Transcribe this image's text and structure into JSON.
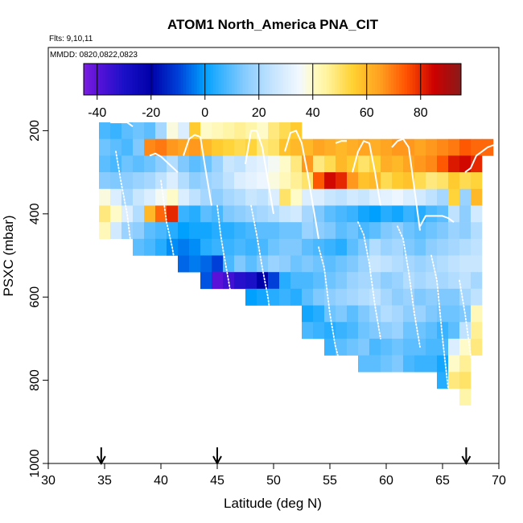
{
  "chart_data": {
    "type": "heatmap",
    "title": "ATOM1 North_America PNA_CIT",
    "annotations": [
      "Flts: 9,10,11",
      "MMDD: 0820,0822,0823"
    ],
    "xlabel": "Latitude (deg N)",
    "ylabel": "PSXC (mbar)",
    "xlim": [
      30,
      70
    ],
    "ylim": [
      1000,
      0
    ],
    "xticks": [
      "30",
      "35",
      "40",
      "45",
      "50",
      "55",
      "60",
      "65",
      "70"
    ],
    "yticks": [
      "200",
      "400",
      "600",
      "800",
      "1000"
    ],
    "colorbar": {
      "range": [
        -45,
        95
      ],
      "ticks": [
        "-40",
        "-20",
        "0",
        "20",
        "40",
        "60",
        "80"
      ]
    },
    "cell_size": {
      "lat": 1,
      "pres": 40
    },
    "columns": [
      {
        "lat": 35,
        "p_top": 180,
        "values": [
          8,
          12,
          10,
          15,
          38,
          48,
          42
        ]
      },
      {
        "lat": 36,
        "p_top": 180,
        "values": [
          6,
          10,
          8,
          14,
          30,
          40,
          28
        ]
      },
      {
        "lat": 37,
        "p_top": 180,
        "values": [
          10,
          8,
          12,
          16,
          20,
          30,
          18
        ]
      },
      {
        "lat": 38,
        "p_top": 180,
        "values": [
          12,
          14,
          10,
          18,
          26,
          22,
          16,
          10
        ]
      },
      {
        "lat": 39,
        "p_top": 180,
        "values": [
          10,
          68,
          12,
          20,
          30,
          60,
          10,
          8
        ]
      },
      {
        "lat": 40,
        "p_top": 180,
        "values": [
          20,
          70,
          16,
          24,
          36,
          72,
          8,
          4
        ]
      },
      {
        "lat": 41,
        "p_top": 180,
        "values": [
          38,
          66,
          22,
          30,
          40,
          80,
          4,
          -2
        ]
      },
      {
        "lat": 42,
        "p_top": 180,
        "values": [
          30,
          64,
          14,
          22,
          30,
          6,
          0,
          -4,
          -6
        ]
      },
      {
        "lat": 43,
        "p_top": 180,
        "values": [
          56,
          66,
          10,
          16,
          24,
          4,
          2,
          -2,
          -4
        ]
      },
      {
        "lat": 44,
        "p_top": 180,
        "values": [
          40,
          60,
          12,
          18,
          20,
          10,
          2,
          4,
          -6,
          -8
        ]
      },
      {
        "lat": 45,
        "p_top": 180,
        "values": [
          42,
          56,
          18,
          20,
          16,
          8,
          4,
          6,
          -10,
          -40
        ]
      },
      {
        "lat": 46,
        "p_top": 180,
        "values": [
          44,
          54,
          26,
          24,
          20,
          14,
          4,
          6,
          8,
          -36
        ]
      },
      {
        "lat": 47,
        "p_top": 180,
        "values": [
          46,
          52,
          24,
          30,
          22,
          16,
          6,
          8,
          14,
          -32
        ]
      },
      {
        "lat": 48,
        "p_top": 180,
        "values": [
          44,
          54,
          30,
          32,
          26,
          18,
          8,
          6,
          10,
          -30,
          0
        ]
      },
      {
        "lat": 49,
        "p_top": 180,
        "values": [
          40,
          48,
          32,
          34,
          24,
          20,
          10,
          8,
          14,
          -20,
          2
        ]
      },
      {
        "lat": 50,
        "p_top": 180,
        "values": [
          48,
          50,
          36,
          38,
          30,
          22,
          10,
          12,
          18,
          -10,
          4
        ]
      },
      {
        "lat": 51,
        "p_top": 180,
        "values": [
          52,
          58,
          40,
          42,
          50,
          26,
          12,
          14,
          16,
          4,
          6
        ]
      },
      {
        "lat": 52,
        "p_top": 180,
        "values": [
          56,
          60,
          48,
          46,
          40,
          28,
          12,
          14,
          12,
          8,
          4
        ]
      },
      {
        "lat": 53,
        "p_top": 220,
        "values": [
          60,
          66,
          50,
          30,
          20,
          18,
          10,
          14,
          8,
          10,
          2,
          8
        ]
      },
      {
        "lat": 54,
        "p_top": 220,
        "values": [
          64,
          48,
          74,
          30,
          14,
          16,
          8,
          12,
          10,
          14,
          4,
          6
        ]
      },
      {
        "lat": 55,
        "p_top": 220,
        "values": [
          62,
          52,
          84,
          26,
          10,
          14,
          6,
          10,
          12,
          16,
          12,
          4,
          6
        ]
      },
      {
        "lat": 56,
        "p_top": 220,
        "values": [
          60,
          60,
          80,
          24,
          8,
          10,
          4,
          12,
          14,
          18,
          14,
          6,
          10
        ]
      },
      {
        "lat": 57,
        "p_top": 220,
        "values": [
          62,
          56,
          66,
          28,
          6,
          12,
          10,
          14,
          18,
          20,
          10,
          8,
          12
        ]
      },
      {
        "lat": 58,
        "p_top": 220,
        "values": [
          64,
          50,
          58,
          26,
          2,
          8,
          14,
          18,
          20,
          22,
          14,
          12,
          14,
          10
        ]
      },
      {
        "lat": 59,
        "p_top": 220,
        "values": [
          62,
          54,
          60,
          30,
          0,
          10,
          22,
          26,
          20,
          24,
          18,
          14,
          8,
          10
        ]
      },
      {
        "lat": 60,
        "p_top": 220,
        "values": [
          64,
          62,
          52,
          32,
          4,
          14,
          18,
          24,
          16,
          20,
          22,
          16,
          10,
          12
        ]
      },
      {
        "lat": 61,
        "p_top": 220,
        "values": [
          66,
          60,
          56,
          34,
          2,
          16,
          20,
          22,
          18,
          16,
          20,
          18,
          12,
          14
        ]
      },
      {
        "lat": 62,
        "p_top": 220,
        "values": [
          66,
          64,
          58,
          30,
          6,
          12,
          14,
          20,
          22,
          18,
          16,
          12,
          10,
          8
        ]
      },
      {
        "lat": 63,
        "p_top": 220,
        "values": [
          64,
          66,
          52,
          28,
          4,
          10,
          12,
          18,
          20,
          14,
          18,
          12,
          10,
          6
        ]
      },
      {
        "lat": 64,
        "p_top": 220,
        "values": [
          66,
          68,
          48,
          24,
          8,
          12,
          16,
          20,
          22,
          16,
          14,
          10,
          8,
          6
        ]
      },
      {
        "lat": 65,
        "p_top": 220,
        "values": [
          68,
          74,
          50,
          20,
          10,
          14,
          18,
          22,
          20,
          14,
          12,
          6,
          8,
          2,
          4
        ]
      },
      {
        "lat": 66,
        "p_top": 220,
        "values": [
          70,
          82,
          56,
          54,
          24,
          18,
          20,
          24,
          22,
          14,
          12,
          10,
          30,
          40,
          48
        ]
      },
      {
        "lat": 67,
        "p_top": 220,
        "values": [
          74,
          84,
          52,
          18,
          16,
          16,
          22,
          26,
          24,
          20,
          14,
          24,
          40,
          46,
          50,
          44
        ]
      },
      {
        "lat": 68,
        "p_top": 220,
        "values": [
          72,
          80,
          54,
          60,
          28,
          22,
          24,
          26,
          20,
          24,
          42,
          46,
          48
        ]
      },
      {
        "lat": 69,
        "p_top": 220,
        "values": [
          72
        ]
      }
    ],
    "flight_tracks": [
      {
        "style": "solid",
        "points": [
          [
            35.5,
            180
          ],
          [
            36,
            180
          ],
          [
            36.5,
            180
          ],
          [
            37,
            180
          ],
          [
            37.5,
            190
          ]
        ]
      },
      {
        "style": "solid",
        "points": [
          [
            39,
            260
          ],
          [
            39.5,
            255
          ],
          [
            40,
            262
          ],
          [
            41.5,
            300
          ]
        ]
      },
      {
        "style": "solid",
        "points": [
          [
            42,
            260
          ],
          [
            42.5,
            220
          ],
          [
            43,
            210
          ],
          [
            43.5,
            215
          ],
          [
            44,
            300
          ],
          [
            44.5,
            380
          ]
        ]
      },
      {
        "style": "solid",
        "points": [
          [
            47.5,
            280
          ],
          [
            48,
            200
          ],
          [
            48.5,
            200
          ],
          [
            49,
            240
          ],
          [
            49.5,
            320
          ],
          [
            50,
            400
          ]
        ]
      },
      {
        "style": "solid",
        "points": [
          [
            51,
            250
          ],
          [
            51.5,
            205
          ],
          [
            52,
            200
          ],
          [
            52.5,
            230
          ],
          [
            53,
            300
          ],
          [
            53.5,
            380
          ],
          [
            54,
            460
          ]
        ]
      },
      {
        "style": "solid",
        "points": [
          [
            55.5,
            230
          ],
          [
            56,
            225
          ],
          [
            56.5,
            225
          ]
        ]
      },
      {
        "style": "solid",
        "points": [
          [
            57,
            300
          ],
          [
            57.5,
            250
          ],
          [
            58,
            225
          ],
          [
            58.5,
            230
          ],
          [
            59,
            300
          ],
          [
            59.5,
            380
          ]
        ]
      },
      {
        "style": "solid",
        "points": [
          [
            60.5,
            240
          ],
          [
            61,
            225
          ],
          [
            61.5,
            220
          ],
          [
            62,
            240
          ],
          [
            63,
            440
          ]
        ]
      },
      {
        "style": "solid",
        "points": [
          [
            63,
            430
          ],
          [
            63.5,
            405
          ],
          [
            64,
            405
          ],
          [
            64.5,
            405
          ],
          [
            65,
            405
          ],
          [
            65.5,
            410
          ],
          [
            66,
            420
          ]
        ]
      },
      {
        "style": "solid",
        "points": [
          [
            67,
            300
          ],
          [
            67.5,
            290
          ],
          [
            68,
            260
          ],
          [
            68.5,
            250
          ],
          [
            69,
            240
          ],
          [
            69.5,
            235
          ],
          [
            70,
            230
          ]
        ]
      },
      {
        "style": "dotted",
        "points": [
          [
            36,
            250
          ],
          [
            36.5,
            330
          ],
          [
            37,
            400
          ],
          [
            37.5,
            510
          ]
        ]
      },
      {
        "style": "dotted",
        "points": [
          [
            40,
            320
          ],
          [
            40.5,
            420
          ],
          [
            41,
            480
          ],
          [
            41.5,
            560
          ],
          [
            42,
            620
          ]
        ]
      },
      {
        "style": "dotted",
        "points": [
          [
            45,
            380
          ],
          [
            45.3,
            450
          ],
          [
            45.6,
            500
          ],
          [
            46,
            560
          ],
          [
            46.5,
            640
          ]
        ]
      },
      {
        "style": "dotted",
        "points": [
          [
            48,
            380
          ],
          [
            48.5,
            450
          ],
          [
            49,
            530
          ],
          [
            49.5,
            600
          ],
          [
            50,
            700
          ]
        ]
      },
      {
        "style": "dotted",
        "points": [
          [
            54,
            480
          ],
          [
            54.5,
            530
          ],
          [
            55,
            640
          ],
          [
            55.5,
            720
          ],
          [
            56,
            770
          ]
        ]
      },
      {
        "style": "dotted",
        "points": [
          [
            57.5,
            420
          ],
          [
            58,
            450
          ],
          [
            58.5,
            520
          ],
          [
            59,
            620
          ],
          [
            59.5,
            700
          ]
        ]
      },
      {
        "style": "dotted",
        "points": [
          [
            61,
            430
          ],
          [
            61.5,
            460
          ],
          [
            62,
            540
          ],
          [
            62.5,
            640
          ],
          [
            63,
            720
          ]
        ]
      },
      {
        "style": "dotted",
        "points": [
          [
            64,
            500
          ],
          [
            64.5,
            560
          ],
          [
            65,
            700
          ],
          [
            65.5,
            820
          ],
          [
            66,
            900
          ]
        ]
      },
      {
        "style": "dotted",
        "points": [
          [
            66.5,
            560
          ],
          [
            67,
            640
          ],
          [
            67.5,
            740
          ],
          [
            68,
            800
          ],
          [
            68.5,
            860
          ]
        ]
      }
    ],
    "markers": [
      {
        "lat": 34.7
      },
      {
        "lat": 45
      },
      {
        "lat": 67.1
      }
    ]
  }
}
